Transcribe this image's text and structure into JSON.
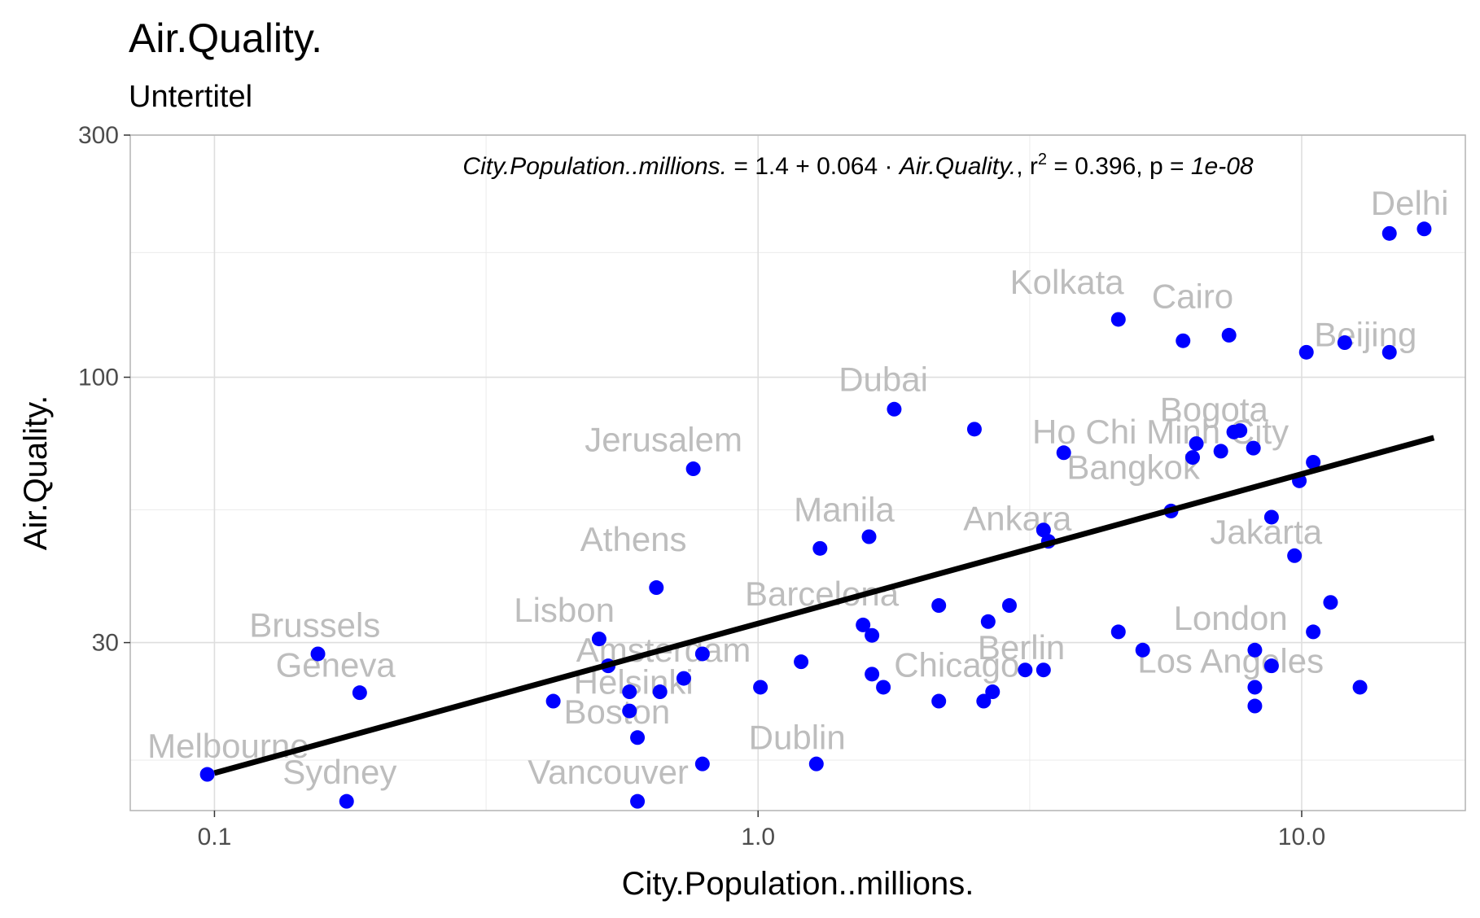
{
  "chart_data": {
    "type": "scatter",
    "title": "Air.Quality.",
    "subtitle": "Untertitel",
    "xlabel": "City.Population..millions.",
    "ylabel": "Air.Quality.",
    "x_scale": "log10",
    "y_scale": "log10",
    "xlim": [
      0.07,
      20
    ],
    "ylim": [
      14,
      300
    ],
    "x_ticks": [
      {
        "value": 0.1,
        "label": "0.1"
      },
      {
        "value": 1,
        "label": "1.0"
      },
      {
        "value": 10,
        "label": "10.0"
      }
    ],
    "x_minor_ticks": [
      0.316,
      3.16
    ],
    "y_ticks": [
      {
        "value": 30,
        "label": "30"
      },
      {
        "value": 100,
        "label": "100"
      },
      {
        "value": 300,
        "label": "300"
      }
    ],
    "y_minor_ticks": [
      17.6,
      54.8,
      176
    ],
    "grid": true,
    "point_color": "#0000ff",
    "label_color": "#bdbdbd",
    "line_color": "#000000",
    "regression_line": {
      "x": [
        0.1,
        17.5
      ],
      "y": [
        16.6,
        76
      ]
    },
    "annotation": {
      "lhs": "City.Population..millions.",
      "eq": " = 1.4 + 0.064 · ",
      "var": "Air.Quality.",
      "r2_label": ",  r",
      "r2_sup": "2",
      "r2_value": " = 0.396,  p = ",
      "p_value": "1e-08"
    },
    "points": [
      {
        "x": 0.097,
        "y": 16.5
      },
      {
        "x": 0.175,
        "y": 14.6
      },
      {
        "x": 0.155,
        "y": 28.5
      },
      {
        "x": 0.185,
        "y": 23.9
      },
      {
        "x": 0.42,
        "y": 23.0
      },
      {
        "x": 0.51,
        "y": 30.5
      },
      {
        "x": 0.53,
        "y": 27.0
      },
      {
        "x": 0.58,
        "y": 24.0
      },
      {
        "x": 0.58,
        "y": 22.0
      },
      {
        "x": 0.6,
        "y": 19.5
      },
      {
        "x": 0.6,
        "y": 14.6
      },
      {
        "x": 0.65,
        "y": 38.5
      },
      {
        "x": 0.66,
        "y": 24.0
      },
      {
        "x": 0.73,
        "y": 25.5
      },
      {
        "x": 0.76,
        "y": 66.0
      },
      {
        "x": 0.79,
        "y": 28.5
      },
      {
        "x": 0.79,
        "y": 17.3
      },
      {
        "x": 1.01,
        "y": 24.5
      },
      {
        "x": 1.2,
        "y": 27.5
      },
      {
        "x": 1.28,
        "y": 17.3
      },
      {
        "x": 1.3,
        "y": 46.0
      },
      {
        "x": 1.56,
        "y": 32.5
      },
      {
        "x": 1.6,
        "y": 48.5
      },
      {
        "x": 1.62,
        "y": 31.0
      },
      {
        "x": 1.62,
        "y": 26.0
      },
      {
        "x": 1.7,
        "y": 24.5
      },
      {
        "x": 1.78,
        "y": 86.5
      },
      {
        "x": 2.15,
        "y": 35.5
      },
      {
        "x": 2.15,
        "y": 23.0
      },
      {
        "x": 2.5,
        "y": 79.0
      },
      {
        "x": 2.6,
        "y": 23.0
      },
      {
        "x": 2.65,
        "y": 33.0
      },
      {
        "x": 2.7,
        "y": 24.0
      },
      {
        "x": 2.9,
        "y": 35.5
      },
      {
        "x": 3.1,
        "y": 26.5
      },
      {
        "x": 3.35,
        "y": 26.5
      },
      {
        "x": 3.35,
        "y": 50.0
      },
      {
        "x": 3.42,
        "y": 47.5
      },
      {
        "x": 3.65,
        "y": 71.0
      },
      {
        "x": 4.6,
        "y": 31.5
      },
      {
        "x": 4.6,
        "y": 130.0
      },
      {
        "x": 5.1,
        "y": 29.0
      },
      {
        "x": 5.75,
        "y": 54.5
      },
      {
        "x": 6.05,
        "y": 118.0
      },
      {
        "x": 6.3,
        "y": 69.5
      },
      {
        "x": 6.4,
        "y": 74.0
      },
      {
        "x": 7.1,
        "y": 71.5
      },
      {
        "x": 7.35,
        "y": 121.0
      },
      {
        "x": 7.5,
        "y": 78.0
      },
      {
        "x": 7.7,
        "y": 78.5
      },
      {
        "x": 8.15,
        "y": 72.5
      },
      {
        "x": 8.2,
        "y": 29.0
      },
      {
        "x": 8.2,
        "y": 24.5
      },
      {
        "x": 8.2,
        "y": 22.5
      },
      {
        "x": 8.8,
        "y": 27.0
      },
      {
        "x": 8.8,
        "y": 53.0
      },
      {
        "x": 9.7,
        "y": 44.5
      },
      {
        "x": 9.9,
        "y": 62.5
      },
      {
        "x": 10.2,
        "y": 112.0
      },
      {
        "x": 10.5,
        "y": 68.0
      },
      {
        "x": 10.5,
        "y": 31.5
      },
      {
        "x": 11.3,
        "y": 36.0
      },
      {
        "x": 12.0,
        "y": 117.0
      },
      {
        "x": 12.8,
        "y": 24.5
      },
      {
        "x": 14.5,
        "y": 112.0
      },
      {
        "x": 14.5,
        "y": 192.0
      },
      {
        "x": 16.8,
        "y": 196.0
      }
    ],
    "labels": [
      {
        "text": "Delhi",
        "x": 15.8,
        "y": 209
      },
      {
        "text": "Kolkata",
        "x": 3.7,
        "y": 146
      },
      {
        "text": "Cairo",
        "x": 6.3,
        "y": 137
      },
      {
        "text": "Beijing",
        "x": 13.1,
        "y": 115
      },
      {
        "text": "Dubai",
        "x": 1.7,
        "y": 94
      },
      {
        "text": "Bogota",
        "x": 6.9,
        "y": 82
      },
      {
        "text": "Ho Chi Minh City",
        "x": 5.5,
        "y": 74
      },
      {
        "text": "Bangkok",
        "x": 4.9,
        "y": 63
      },
      {
        "text": "Jerusalem",
        "x": 0.67,
        "y": 71.5
      },
      {
        "text": "Manila",
        "x": 1.44,
        "y": 52
      },
      {
        "text": "Ankara",
        "x": 3.0,
        "y": 50
      },
      {
        "text": "Jakarta",
        "x": 8.6,
        "y": 47
      },
      {
        "text": "Athens",
        "x": 0.59,
        "y": 45.5
      },
      {
        "text": "Barcelona",
        "x": 1.31,
        "y": 35.5
      },
      {
        "text": "Lisbon",
        "x": 0.44,
        "y": 33
      },
      {
        "text": "London",
        "x": 7.4,
        "y": 31.8
      },
      {
        "text": "Brussels",
        "x": 0.153,
        "y": 30.8
      },
      {
        "text": "Berlin",
        "x": 3.05,
        "y": 27.8
      },
      {
        "text": "Amsterdam",
        "x": 0.67,
        "y": 27.5
      },
      {
        "text": "Los Angeles",
        "x": 7.4,
        "y": 26.2
      },
      {
        "text": "Geneva",
        "x": 0.167,
        "y": 25.7
      },
      {
        "text": "Chicago",
        "x": 2.32,
        "y": 25.7
      },
      {
        "text": "Helsinki",
        "x": 0.59,
        "y": 23.8
      },
      {
        "text": "Boston",
        "x": 0.55,
        "y": 20.8
      },
      {
        "text": "Dublin",
        "x": 1.18,
        "y": 18.5
      },
      {
        "text": "Melbourne",
        "x": 0.106,
        "y": 17.8
      },
      {
        "text": "Sydney",
        "x": 0.17,
        "y": 15.8
      },
      {
        "text": "Vancouver",
        "x": 0.53,
        "y": 15.8
      }
    ]
  }
}
